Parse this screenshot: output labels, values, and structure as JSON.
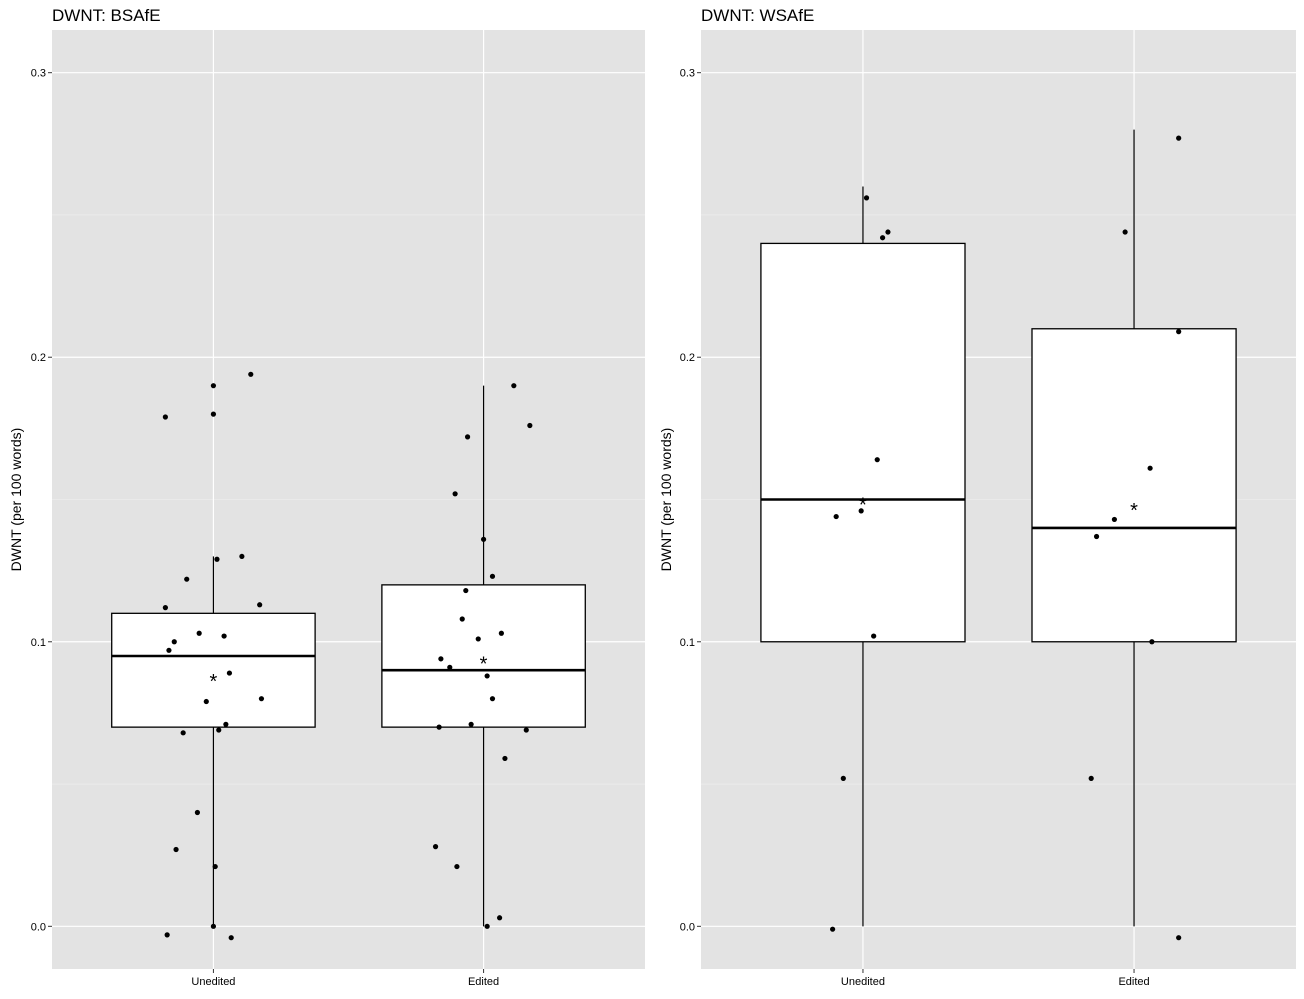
{
  "chart_data": [
    {
      "type": "box",
      "title": "DWNT: BSAfE",
      "xlabel": "",
      "ylabel": "DWNT (per 100 words)",
      "ylim": [
        -0.015,
        0.315
      ],
      "yticks": [
        "0.0",
        "0.1",
        "0.2",
        "0.3"
      ],
      "categories": [
        "Unedited",
        "Edited"
      ],
      "grid": true,
      "boxes": [
        {
          "category": "Unedited",
          "whisker_low": 0.0,
          "q1": 0.07,
          "median": 0.095,
          "q3": 0.11,
          "whisker_high": 0.13,
          "mean": 0.087
        },
        {
          "category": "Edited",
          "whisker_low": 0.0,
          "q1": 0.07,
          "median": 0.09,
          "q3": 0.12,
          "whisker_high": 0.19,
          "mean": 0.093
        }
      ],
      "points": [
        {
          "category": "Unedited",
          "x_jitter": -0.27,
          "y": 0.179
        },
        {
          "category": "Unedited",
          "x_jitter": 0.0,
          "y": 0.19
        },
        {
          "category": "Unedited",
          "x_jitter": 0.0,
          "y": 0.18
        },
        {
          "category": "Unedited",
          "x_jitter": 0.21,
          "y": 0.194
        },
        {
          "category": "Unedited",
          "x_jitter": 0.16,
          "y": 0.13
        },
        {
          "category": "Unedited",
          "x_jitter": 0.02,
          "y": 0.129
        },
        {
          "category": "Unedited",
          "x_jitter": -0.15,
          "y": 0.122
        },
        {
          "category": "Unedited",
          "x_jitter": -0.27,
          "y": 0.112
        },
        {
          "category": "Unedited",
          "x_jitter": 0.26,
          "y": 0.113
        },
        {
          "category": "Unedited",
          "x_jitter": -0.08,
          "y": 0.103
        },
        {
          "category": "Unedited",
          "x_jitter": 0.06,
          "y": 0.102
        },
        {
          "category": "Unedited",
          "x_jitter": -0.22,
          "y": 0.1
        },
        {
          "category": "Unedited",
          "x_jitter": -0.25,
          "y": 0.097
        },
        {
          "category": "Unedited",
          "x_jitter": 0.09,
          "y": 0.089
        },
        {
          "category": "Unedited",
          "x_jitter": -0.04,
          "y": 0.079
        },
        {
          "category": "Unedited",
          "x_jitter": 0.27,
          "y": 0.08
        },
        {
          "category": "Unedited",
          "x_jitter": 0.07,
          "y": 0.071
        },
        {
          "category": "Unedited",
          "x_jitter": -0.17,
          "y": 0.068
        },
        {
          "category": "Unedited",
          "x_jitter": 0.03,
          "y": 0.069
        },
        {
          "category": "Unedited",
          "x_jitter": -0.09,
          "y": 0.04
        },
        {
          "category": "Unedited",
          "x_jitter": -0.21,
          "y": 0.027
        },
        {
          "category": "Unedited",
          "x_jitter": 0.01,
          "y": 0.021
        },
        {
          "category": "Unedited",
          "x_jitter": 0.0,
          "y": 0.0
        },
        {
          "category": "Unedited",
          "x_jitter": -0.26,
          "y": -0.003
        },
        {
          "category": "Unedited",
          "x_jitter": 0.1,
          "y": -0.004
        },
        {
          "category": "Edited",
          "x_jitter": 0.17,
          "y": 0.19
        },
        {
          "category": "Edited",
          "x_jitter": 0.26,
          "y": 0.176
        },
        {
          "category": "Edited",
          "x_jitter": -0.09,
          "y": 0.172
        },
        {
          "category": "Edited",
          "x_jitter": -0.16,
          "y": 0.152
        },
        {
          "category": "Edited",
          "x_jitter": 0.0,
          "y": 0.136
        },
        {
          "category": "Edited",
          "x_jitter": 0.05,
          "y": 0.123
        },
        {
          "category": "Edited",
          "x_jitter": -0.1,
          "y": 0.118
        },
        {
          "category": "Edited",
          "x_jitter": -0.12,
          "y": 0.108
        },
        {
          "category": "Edited",
          "x_jitter": 0.1,
          "y": 0.103
        },
        {
          "category": "Edited",
          "x_jitter": -0.03,
          "y": 0.101
        },
        {
          "category": "Edited",
          "x_jitter": -0.24,
          "y": 0.094
        },
        {
          "category": "Edited",
          "x_jitter": -0.19,
          "y": 0.091
        },
        {
          "category": "Edited",
          "x_jitter": 0.02,
          "y": 0.088
        },
        {
          "category": "Edited",
          "x_jitter": 0.05,
          "y": 0.08
        },
        {
          "category": "Edited",
          "x_jitter": -0.25,
          "y": 0.07
        },
        {
          "category": "Edited",
          "x_jitter": -0.07,
          "y": 0.071
        },
        {
          "category": "Edited",
          "x_jitter": 0.24,
          "y": 0.069
        },
        {
          "category": "Edited",
          "x_jitter": 0.12,
          "y": 0.059
        },
        {
          "category": "Edited",
          "x_jitter": -0.27,
          "y": 0.028
        },
        {
          "category": "Edited",
          "x_jitter": -0.15,
          "y": 0.021
        },
        {
          "category": "Edited",
          "x_jitter": 0.09,
          "y": 0.003
        },
        {
          "category": "Edited",
          "x_jitter": 0.02,
          "y": 0.0
        }
      ]
    },
    {
      "type": "box",
      "title": "DWNT: WSAfE",
      "xlabel": "",
      "ylabel": "DWNT (per 100 words)",
      "ylim": [
        -0.015,
        0.315
      ],
      "yticks": [
        "0.0",
        "0.1",
        "0.2",
        "0.3"
      ],
      "categories": [
        "Unedited",
        "Edited"
      ],
      "grid": true,
      "boxes": [
        {
          "category": "Unedited",
          "whisker_low": 0.0,
          "q1": 0.1,
          "median": 0.15,
          "q3": 0.24,
          "whisker_high": 0.26,
          "mean": 0.149
        },
        {
          "category": "Edited",
          "whisker_low": 0.0,
          "q1": 0.1,
          "median": 0.14,
          "q3": 0.21,
          "whisker_high": 0.28,
          "mean": 0.147
        }
      ],
      "points": [
        {
          "category": "Unedited",
          "x_jitter": 0.02,
          "y": 0.256
        },
        {
          "category": "Unedited",
          "x_jitter": 0.11,
          "y": 0.242
        },
        {
          "category": "Unedited",
          "x_jitter": 0.14,
          "y": 0.244
        },
        {
          "category": "Unedited",
          "x_jitter": 0.08,
          "y": 0.164
        },
        {
          "category": "Unedited",
          "x_jitter": -0.01,
          "y": 0.146
        },
        {
          "category": "Unedited",
          "x_jitter": -0.15,
          "y": 0.144
        },
        {
          "category": "Unedited",
          "x_jitter": 0.06,
          "y": 0.102
        },
        {
          "category": "Unedited",
          "x_jitter": -0.11,
          "y": 0.052
        },
        {
          "category": "Unedited",
          "x_jitter": -0.17,
          "y": -0.001
        },
        {
          "category": "Edited",
          "x_jitter": 0.25,
          "y": 0.277
        },
        {
          "category": "Edited",
          "x_jitter": -0.05,
          "y": 0.244
        },
        {
          "category": "Edited",
          "x_jitter": 0.25,
          "y": 0.209
        },
        {
          "category": "Edited",
          "x_jitter": 0.09,
          "y": 0.161
        },
        {
          "category": "Edited",
          "x_jitter": -0.11,
          "y": 0.143
        },
        {
          "category": "Edited",
          "x_jitter": -0.21,
          "y": 0.137
        },
        {
          "category": "Edited",
          "x_jitter": 0.1,
          "y": 0.1
        },
        {
          "category": "Edited",
          "x_jitter": -0.24,
          "y": 0.052
        },
        {
          "category": "Edited",
          "x_jitter": 0.25,
          "y": -0.004
        }
      ]
    }
  ]
}
